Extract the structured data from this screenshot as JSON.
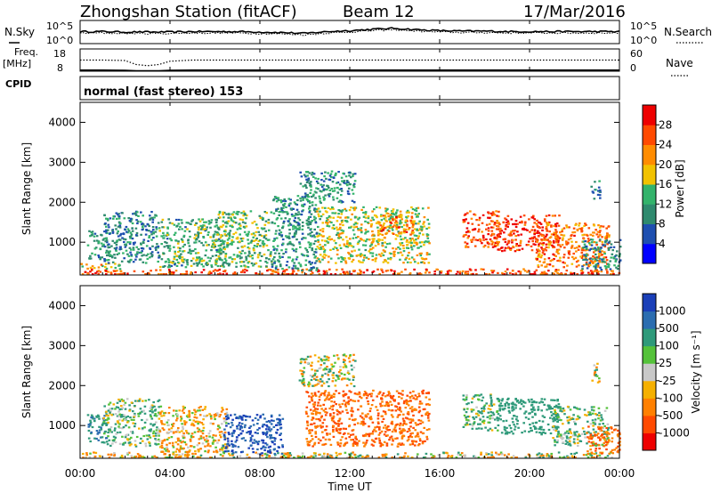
{
  "header": {
    "station": "Zhongshan Station (fitACF)",
    "beam": "Beam 12",
    "date": "17/Mar/2016"
  },
  "mode": "normal (fast stereo) 153",
  "x_axis": {
    "label": "Time UT",
    "ticks": [
      "00:00",
      "04:00",
      "08:00",
      "12:00",
      "16:00",
      "20:00",
      "00:00"
    ],
    "range_hours": [
      0,
      24
    ]
  },
  "noise_panel": {
    "left_label": "N.Sky",
    "left_ticks": [
      "10^5",
      "10^0"
    ],
    "right_ticks": [
      "10^5",
      "10^0"
    ],
    "right_label": "N.Search"
  },
  "freq_panel": {
    "left_label_1": "Freq.",
    "left_label_2": "[MHz]",
    "left_ticks": [
      "18",
      "8"
    ],
    "right_ticks": [
      "60",
      "0"
    ],
    "right_label": "Nave",
    "cpid_label": "CPID"
  },
  "power_panel": {
    "ylabel": "Slant Range [km]",
    "yticks": [
      "4000",
      "3000",
      "2000",
      "1000"
    ],
    "colorbar_label": "Power [dB]",
    "colorbar_ticks": [
      "28",
      "24",
      "20",
      "16",
      "12",
      "8",
      "4"
    ],
    "colors": [
      "#0000ff",
      "#1e4fb0",
      "#2f8a6e",
      "#33b36b",
      "#f2c200",
      "#ff8c00",
      "#ff4a00",
      "#ee0000"
    ]
  },
  "velocity_panel": {
    "ylabel": "Slant Range [km]",
    "yticks": [
      "4000",
      "3000",
      "2000",
      "1000"
    ],
    "colorbar_label": "Velocity [m s⁻¹]",
    "colorbar_ticks": [
      "1000",
      "500",
      "100",
      "25",
      "-25",
      "-100",
      "-500",
      "-1000"
    ],
    "colors": [
      "#1a3fb8",
      "#2b6db0",
      "#2f9a7a",
      "#55c23a",
      "#c8c8c8",
      "#f5b000",
      "#ff8000",
      "#ff4a00",
      "#ee0000"
    ]
  },
  "chart_data": [
    {
      "type": "line",
      "name": "noise",
      "x": [
        0,
        1,
        2,
        3,
        4,
        5,
        6,
        7,
        8,
        9,
        10,
        11,
        12,
        13,
        14,
        15,
        16,
        17,
        18,
        19,
        20,
        21,
        22,
        23,
        24
      ],
      "series": [
        {
          "values": [
            2.6,
            2.6,
            2.5,
            2.5,
            2.5,
            2.6,
            2.6,
            2.6,
            2.5,
            2.4,
            2.2,
            2.6,
            2.8,
            3.1,
            3.3,
            3.0,
            2.8,
            2.7,
            2.7,
            2.6,
            2.6,
            2.6,
            2.6,
            2.6,
            2.6
          ]
        },
        {
          "values": [
            2.3,
            2.3,
            2.2,
            2.2,
            2.2,
            2.3,
            2.3,
            2.3,
            2.2,
            2.1,
            1.9,
            2.3,
            2.5,
            2.8,
            3.0,
            2.7,
            2.5,
            2.4,
            2.4,
            2.3,
            2.3,
            2.3,
            2.3,
            2.3,
            2.3
          ]
        }
      ],
      "ylim": [
        0,
        5
      ]
    },
    {
      "type": "line",
      "name": "frequency-nave",
      "x": [
        0,
        1,
        2,
        2.5,
        3,
        3.5,
        4,
        5,
        8,
        12,
        16,
        20,
        24
      ],
      "series": [
        {
          "values": [
            13,
            13,
            12.8,
            11,
            10.5,
            11,
            12.5,
            13,
            13,
            13,
            13,
            13,
            13
          ]
        },
        {
          "values": [
            8.5,
            8.5,
            8.4,
            8.2,
            8.2,
            8.2,
            8.4,
            8.5,
            8.5,
            8.5,
            8.5,
            8.5,
            8.5
          ]
        }
      ],
      "ylim": [
        8,
        18
      ]
    },
    {
      "type": "heatmap",
      "name": "power",
      "xlim": [
        0,
        24
      ],
      "ylim": [
        180,
        4500
      ],
      "zlim": [
        0,
        30
      ],
      "regions": [
        {
          "x": [
            0,
            24
          ],
          "y": [
            180,
            350
          ],
          "v": 24
        },
        {
          "x": [
            0,
            1.8
          ],
          "y": [
            350,
            500
          ],
          "v": 18
        },
        {
          "x": [
            0.3,
            1.2
          ],
          "y": [
            600,
            1300
          ],
          "v": 10
        },
        {
          "x": [
            1,
            3.5
          ],
          "y": [
            500,
            1800
          ],
          "v": 9
        },
        {
          "x": [
            3.5,
            6.5
          ],
          "y": [
            400,
            1600
          ],
          "v": 12
        },
        {
          "x": [
            6,
            8.5
          ],
          "y": [
            400,
            1800
          ],
          "v": 13
        },
        {
          "x": [
            8.5,
            10.5
          ],
          "y": [
            300,
            2200
          ],
          "v": 10
        },
        {
          "x": [
            9.7,
            12.2
          ],
          "y": [
            2000,
            2800
          ],
          "v": 10
        },
        {
          "x": [
            10.5,
            15.5
          ],
          "y": [
            500,
            1900
          ],
          "v": 16
        },
        {
          "x": [
            13.3,
            14.8
          ],
          "y": [
            1200,
            1700
          ],
          "v": 22
        },
        {
          "x": [
            17,
            18.6
          ],
          "y": [
            900,
            1800
          ],
          "v": 25
        },
        {
          "x": [
            18.5,
            21.3
          ],
          "y": [
            800,
            1700
          ],
          "v": 26
        },
        {
          "x": [
            20.2,
            23.5
          ],
          "y": [
            400,
            1500
          ],
          "v": 22
        },
        {
          "x": [
            22.3,
            24
          ],
          "y": [
            300,
            1100
          ],
          "v": 9
        },
        {
          "x": [
            22.7,
            23.1
          ],
          "y": [
            2100,
            2600
          ],
          "v": 8
        }
      ]
    },
    {
      "type": "heatmap",
      "name": "velocity",
      "xlim": [
        0,
        24
      ],
      "ylim": [
        180,
        4500
      ],
      "zlim": [
        -1000,
        1000
      ],
      "regions": [
        {
          "x": [
            0,
            3
          ],
          "y": [
            180,
            350
          ],
          "v": -100
        },
        {
          "x": [
            3,
            24
          ],
          "y": [
            180,
            350
          ],
          "v": -25
        },
        {
          "x": [
            0.3,
            1.2
          ],
          "y": [
            600,
            1300
          ],
          "v": 500
        },
        {
          "x": [
            1,
            3.5
          ],
          "y": [
            500,
            1700
          ],
          "v": 100
        },
        {
          "x": [
            3.5,
            6.5
          ],
          "y": [
            350,
            1500
          ],
          "v": -100
        },
        {
          "x": [
            6.3,
            9
          ],
          "y": [
            300,
            1300
          ],
          "v": 1000
        },
        {
          "x": [
            9.7,
            12.2
          ],
          "y": [
            2000,
            2800
          ],
          "v": 0
        },
        {
          "x": [
            10,
            15.5
          ],
          "y": [
            500,
            1900
          ],
          "v": -500
        },
        {
          "x": [
            17,
            18.6
          ],
          "y": [
            900,
            1800
          ],
          "v": 100
        },
        {
          "x": [
            18.5,
            21.3
          ],
          "y": [
            800,
            1700
          ],
          "v": 300
        },
        {
          "x": [
            21,
            23.5
          ],
          "y": [
            500,
            1500
          ],
          "v": 100
        },
        {
          "x": [
            22.5,
            24
          ],
          "y": [
            300,
            1000
          ],
          "v": -500
        },
        {
          "x": [
            22.7,
            23.1
          ],
          "y": [
            2100,
            2600
          ],
          "v": 0
        }
      ]
    }
  ]
}
